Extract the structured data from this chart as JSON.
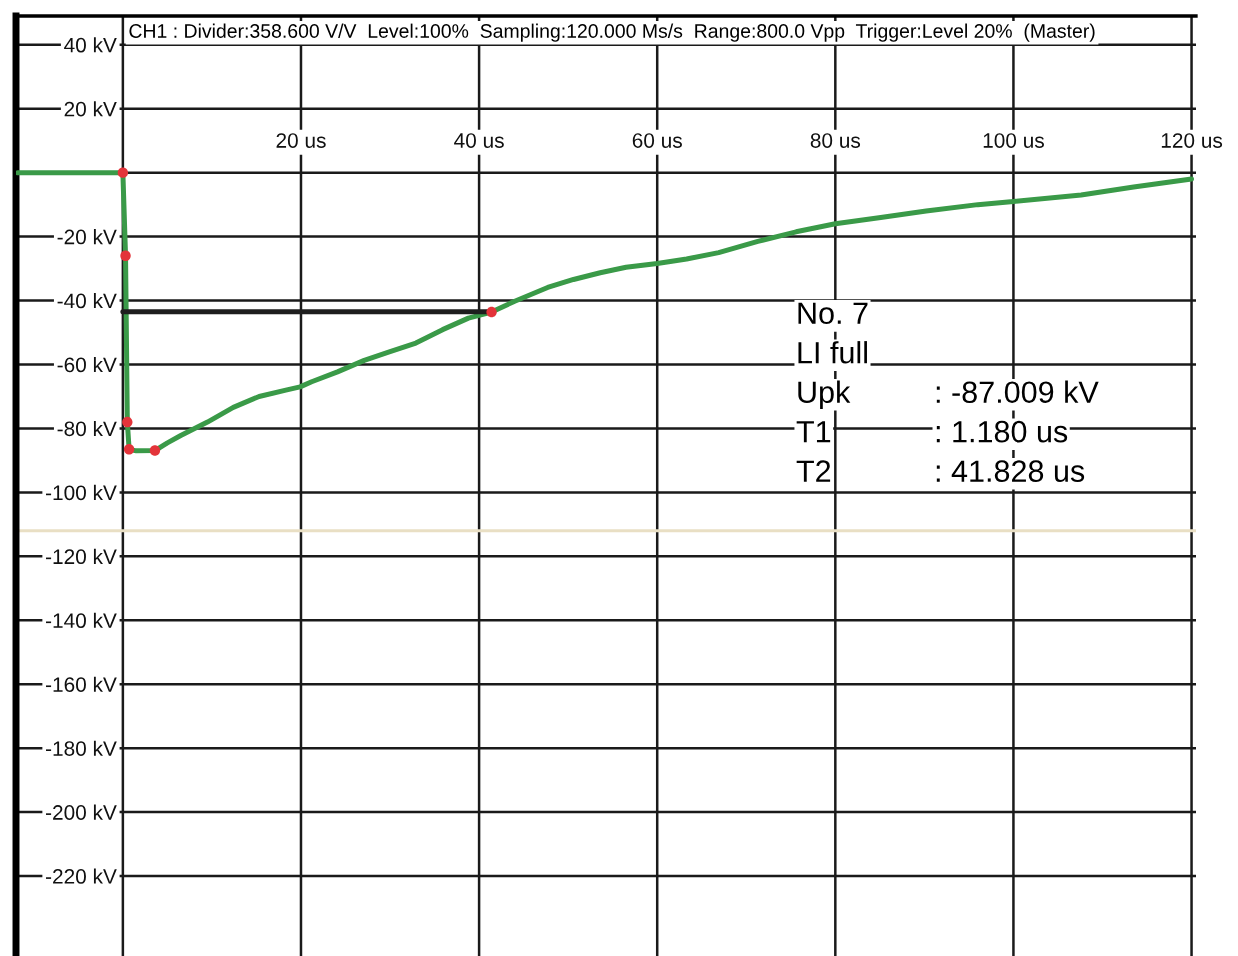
{
  "chart_data": {
    "type": "line",
    "title": "CH1 : Divider:358.600 V/V  Level:100%  Sampling:120.000 Ms/s  Range:800.0 Vpp  Trigger:Level 20%  (Master)",
    "xlim": [
      -12,
      120.5
    ],
    "ylim": [
      -245,
      49
    ],
    "xticks": [
      {
        "value": 0,
        "label": null
      },
      {
        "value": 20,
        "label": "20 us"
      },
      {
        "value": 40,
        "label": "40 us"
      },
      {
        "value": 60,
        "label": "60 us"
      },
      {
        "value": 80,
        "label": "80 us"
      },
      {
        "value": 100,
        "label": "100 us"
      },
      {
        "value": 120,
        "label": "120 us"
      }
    ],
    "yticks": [
      {
        "value": 40,
        "label": "40 kV"
      },
      {
        "value": 20,
        "label": "20 kV"
      },
      {
        "value": 0,
        "label": null
      },
      {
        "value": -20,
        "label": "-20 kV"
      },
      {
        "value": -40,
        "label": "-40 kV"
      },
      {
        "value": -60,
        "label": "-60 kV"
      },
      {
        "value": -80,
        "label": "-80 kV"
      },
      {
        "value": -100,
        "label": "-100 kV"
      },
      {
        "value": -120,
        "label": "-120 kV"
      },
      {
        "value": -140,
        "label": "-140 kV"
      },
      {
        "value": -160,
        "label": "-160 kV"
      },
      {
        "value": -180,
        "label": "-180 kV"
      },
      {
        "value": -200,
        "label": "-200 kV"
      },
      {
        "value": -220,
        "label": "-220 kV"
      }
    ],
    "grid": true,
    "ref_lines": [
      {
        "axis": "y",
        "value": -112,
        "color": "#e9dfc4"
      }
    ],
    "series": [
      {
        "color": "#3a9a48",
        "x": [
          -11.8,
          0,
          0.3,
          0.5,
          0.7,
          1.5,
          3.6,
          5,
          6.5,
          9.5,
          12.4,
          15.3,
          18.3,
          19.9,
          21.2,
          24.1,
          27.1,
          30,
          32.9,
          35.9,
          38.8,
          41.4,
          44,
          47.7,
          50.6,
          53.6,
          56.5,
          60,
          63.3,
          66.9,
          71.3,
          75.6,
          80,
          85.1,
          90.2,
          96,
          100,
          107.6,
          113.5,
          120
        ],
        "values": [
          0,
          0,
          -26,
          -78,
          -86.5,
          -87,
          -86.9,
          -84.5,
          -82.2,
          -78,
          -73.4,
          -70,
          -68,
          -67,
          -65.4,
          -62.3,
          -58.7,
          -56,
          -53.3,
          -49.1,
          -45.5,
          -43.6,
          -40.2,
          -35.9,
          -33.4,
          -31.3,
          -29.6,
          -28.4,
          -27,
          -25,
          -21.5,
          -18.5,
          -16,
          -14,
          -12,
          -10,
          -9,
          -7,
          -4.5,
          -2
        ]
      },
      {
        "type": "line",
        "color": "#1e1e1e",
        "x": [
          0,
          41.4
        ],
        "values": [
          -43.5,
          -43.5
        ]
      },
      {
        "type": "scatter",
        "color": "#e3343a",
        "marker": "circle",
        "x": [
          0,
          0.3,
          0.5,
          0.7,
          3.6,
          41.4
        ],
        "values": [
          0,
          -26,
          -78,
          -86.5,
          -86.9,
          -43.6
        ]
      }
    ],
    "annotations": [
      "No. 7",
      "LI full",
      "Upk\t: -87.009 kV",
      "T1\t: 1.180 us",
      "T2\t: 41.828 us"
    ]
  }
}
